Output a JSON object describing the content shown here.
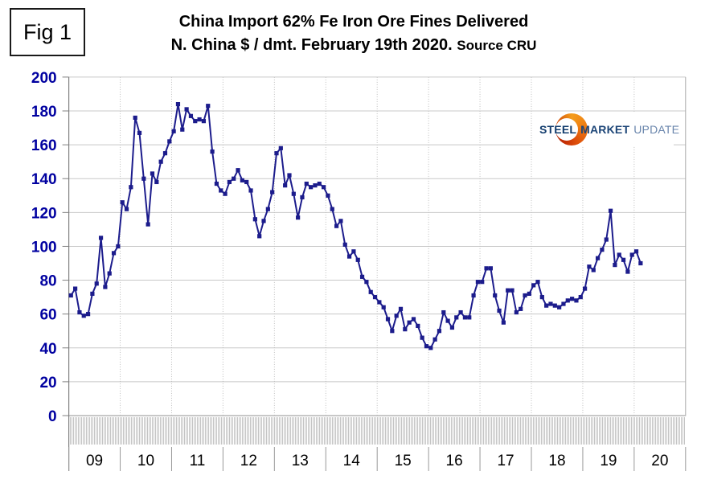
{
  "figure": {
    "label": "Fig 1"
  },
  "title": {
    "line1": "China Import 62% Fe Iron Ore Fines Delivered",
    "line2": "N. China $ / dmt. February 19th 2020.",
    "source": "Source CRU"
  },
  "logo": {
    "steel": "STEEL",
    "market": "MARKET",
    "update": "UPDATE",
    "crescent_icon": "smu-crescent-icon",
    "crescent_top_color": "#F49D1C",
    "crescent_bottom_color": "#C42E05"
  },
  "colors": {
    "line": "#1C1C8C",
    "marker": "#1C1C8C",
    "y_label": "#0000A0",
    "x_label": "#000000",
    "gridline": "#C8C8C8",
    "year_gridline_dotted": "#BEBEBE",
    "axis": "#808080",
    "minor_tick": "#ABABAB",
    "background": "#FFFFFF"
  },
  "chart_data": {
    "type": "line",
    "title": "China Import 62% Fe Iron Ore Fines Delivered N. China $ / dmt. February 19th 2020. Source CRU",
    "xlabel": "",
    "ylabel": "$ / dmt",
    "ylim": [
      0,
      200
    ],
    "y_tick_step": 20,
    "y_ticks": [
      200,
      180,
      160,
      140,
      120,
      100,
      80,
      60,
      40,
      20,
      0
    ],
    "grid": true,
    "legend": "none",
    "marker": "square",
    "x_unit": "month",
    "x_start": "2009-01",
    "x_end": "2020-02",
    "year_labels": [
      "09",
      "10",
      "11",
      "12",
      "13",
      "14",
      "15",
      "16",
      "17",
      "18",
      "19",
      "20"
    ],
    "series": [
      {
        "name": "China import 62% Fe iron ore fines delivered N. China, $/dmt (CRU)",
        "monthly_values": [
          71,
          75,
          61,
          59,
          60,
          72,
          78,
          105,
          76,
          84,
          96,
          100,
          126,
          122,
          135,
          176,
          167,
          140,
          113,
          143,
          138,
          150,
          155,
          162,
          168,
          184,
          169,
          181,
          177,
          174,
          175,
          174,
          183,
          156,
          137,
          133,
          131,
          138,
          140,
          145,
          139,
          138,
          133,
          116,
          106,
          115,
          122,
          132,
          155,
          158,
          136,
          142,
          131,
          117,
          129,
          137,
          135,
          136,
          137,
          135,
          130,
          122,
          112,
          115,
          101,
          94,
          97,
          92,
          82,
          79,
          73,
          70,
          67,
          64,
          57,
          50,
          59,
          63,
          51,
          55,
          57,
          53,
          46,
          41,
          40,
          45,
          50,
          61,
          56,
          52,
          58,
          61,
          58,
          58,
          71,
          79,
          79,
          87,
          87,
          71,
          62,
          55,
          74,
          74,
          61,
          63,
          71,
          72,
          77,
          79,
          70,
          65,
          66,
          65,
          64,
          66,
          68,
          69,
          68,
          70,
          75,
          88,
          86,
          93,
          98,
          104,
          121,
          89,
          95,
          92,
          85,
          95,
          97,
          90
        ]
      }
    ]
  }
}
